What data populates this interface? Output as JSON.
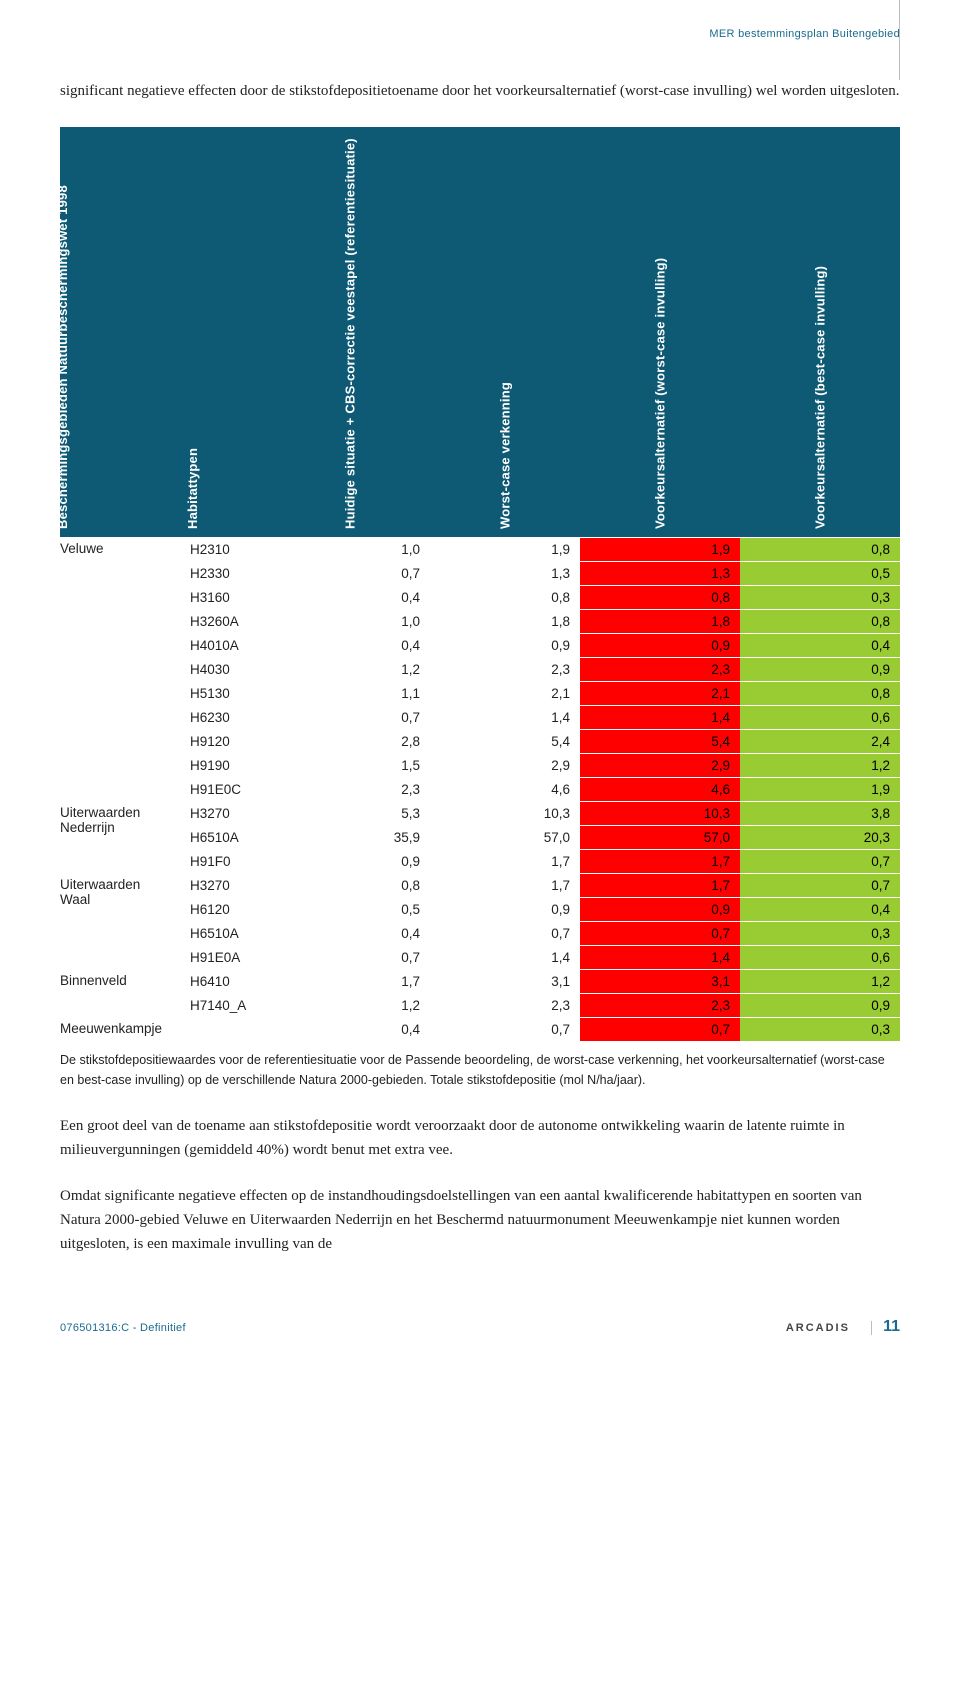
{
  "doc": {
    "header_label": "MER bestemmingsplan Buitengebied",
    "intro": "significant negatieve effecten door de stikstofdepositietoename door het voorkeursalternatief (worst-case invulling) wel worden uitgesloten.",
    "note": "De stikstofdepositiewaardes voor de referentiesituatie voor de Passende beoordeling, de worst-case verkenning, het voorkeursalternatief (worst-case en best-case invulling) op de verschillende Natura 2000-gebieden. Totale stikstofdepositie (mol N/ha/jaar).",
    "para1": "Een groot deel van de toename aan stikstofdepositie wordt veroorzaakt door de autonome ontwikkeling waarin de latente ruimte in milieuvergunningen (gemiddeld 40%) wordt benut met extra vee.",
    "para2": "Omdat significante negatieve effecten op de instandhoudingsdoelstellingen van een aantal kwalificerende habitattypen en soorten van Natura 2000-gebied Veluwe en Uiterwaarden Nederrijn en het Beschermd natuurmonument Meeuwenkampje niet kunnen worden uitgesloten, is een maximale invulling van de",
    "footer_left": "076501316:C - Definitief",
    "footer_brand": "ARCADIS",
    "footer_page": "11"
  },
  "table": {
    "headers": [
      "Beschermingsgebieden Natuurbeschermingswet 1998",
      "Habitattypen",
      "Huidige situatie + CBS-correctie veestapel (referentiesituatie)",
      "Worst-case verkenning",
      "Voorkeursalternatief (worst-case invulling)",
      "Voorkeursalternatief (best-case invulling)"
    ],
    "colors": {
      "header_bg": "#0e5a75",
      "header_text": "#ffffff",
      "worst_bg": "#ff0000",
      "worst_text": "#000000",
      "best_bg": "#99cc33",
      "best_text": "#000000"
    },
    "groups": [
      {
        "area": "Veluwe",
        "rows": [
          {
            "h": "H2310",
            "ref": "1,0",
            "wc": "1,9",
            "vw": "1,9",
            "vb": "0,8"
          },
          {
            "h": "H2330",
            "ref": "0,7",
            "wc": "1,3",
            "vw": "1,3",
            "vb": "0,5"
          },
          {
            "h": "H3160",
            "ref": "0,4",
            "wc": "0,8",
            "vw": "0,8",
            "vb": "0,3"
          },
          {
            "h": "H3260A",
            "ref": "1,0",
            "wc": "1,8",
            "vw": "1,8",
            "vb": "0,8"
          },
          {
            "h": "H4010A",
            "ref": "0,4",
            "wc": "0,9",
            "vw": "0,9",
            "vb": "0,4"
          },
          {
            "h": "H4030",
            "ref": "1,2",
            "wc": "2,3",
            "vw": "2,3",
            "vb": "0,9"
          },
          {
            "h": "H5130",
            "ref": "1,1",
            "wc": "2,1",
            "vw": "2,1",
            "vb": "0,8"
          },
          {
            "h": "H6230",
            "ref": "0,7",
            "wc": "1,4",
            "vw": "1,4",
            "vb": "0,6"
          },
          {
            "h": "H9120",
            "ref": "2,8",
            "wc": "5,4",
            "vw": "5,4",
            "vb": "2,4"
          },
          {
            "h": "H9190",
            "ref": "1,5",
            "wc": "2,9",
            "vw": "2,9",
            "vb": "1,2"
          },
          {
            "h": "H91E0C",
            "ref": "2,3",
            "wc": "4,6",
            "vw": "4,6",
            "vb": "1,9"
          }
        ]
      },
      {
        "area": "Uiterwaarden Nederrijn",
        "area_lines": [
          "Uiterwaarden",
          "Nederrijn"
        ],
        "rows": [
          {
            "h": "H3270",
            "ref": "5,3",
            "wc": "10,3",
            "vw": "10,3",
            "vb": "3,8"
          },
          {
            "h": "H6510A",
            "ref": "35,9",
            "wc": "57,0",
            "vw": "57,0",
            "vb": "20,3"
          },
          {
            "h": "H91F0",
            "ref": "0,9",
            "wc": "1,7",
            "vw": "1,7",
            "vb": "0,7"
          }
        ]
      },
      {
        "area": "Uiterwaarden Waal",
        "area_lines": [
          "Uiterwaarden",
          "Waal"
        ],
        "rows": [
          {
            "h": "H3270",
            "ref": "0,8",
            "wc": "1,7",
            "vw": "1,7",
            "vb": "0,7"
          },
          {
            "h": "H6120",
            "ref": "0,5",
            "wc": "0,9",
            "vw": "0,9",
            "vb": "0,4"
          },
          {
            "h": "H6510A",
            "ref": "0,4",
            "wc": "0,7",
            "vw": "0,7",
            "vb": "0,3"
          },
          {
            "h": "H91E0A",
            "ref": "0,7",
            "wc": "1,4",
            "vw": "1,4",
            "vb": "0,6"
          }
        ]
      },
      {
        "area": "Binnenveld",
        "rows": [
          {
            "h": "H6410",
            "ref": "1,7",
            "wc": "3,1",
            "vw": "3,1",
            "vb": "1,2"
          },
          {
            "h": "H7140_A",
            "ref": "1,2",
            "wc": "2,3",
            "vw": "2,3",
            "vb": "0,9"
          }
        ]
      },
      {
        "area": "Meeuwenkampje",
        "rows": [
          {
            "h": "",
            "ref": "0,4",
            "wc": "0,7",
            "vw": "0,7",
            "vb": "0,3"
          }
        ]
      }
    ]
  }
}
